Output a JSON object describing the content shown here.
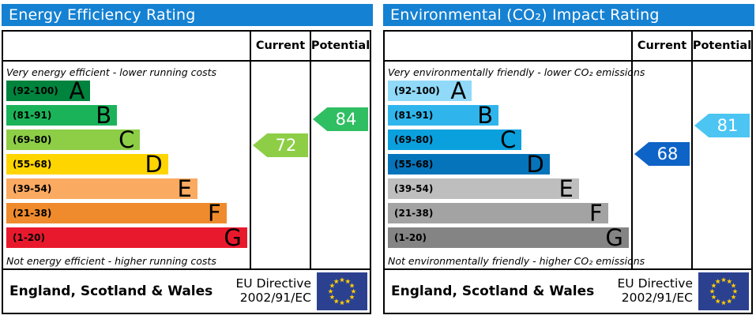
{
  "charts": [
    {
      "title": "Energy Efficiency Rating",
      "header_color": "#1581d2",
      "columns": {
        "current": "Current",
        "potential": "Potential"
      },
      "top_caption": "Very energy efficient - lower running costs",
      "bottom_caption": "Not energy efficient - higher running costs",
      "bands": [
        {
          "range": "(92-100)",
          "letter": "A",
          "color": "#00843d"
        },
        {
          "range": "(81-91)",
          "letter": "B",
          "color": "#1bb35a"
        },
        {
          "range": "(69-80)",
          "letter": "C",
          "color": "#8dce46"
        },
        {
          "range": "(55-68)",
          "letter": "D",
          "color": "#ffd500"
        },
        {
          "range": "(39-54)",
          "letter": "E",
          "color": "#fbaa61"
        },
        {
          "range": "(21-38)",
          "letter": "F",
          "color": "#ef8b2d"
        },
        {
          "range": "(1-20)",
          "letter": "G",
          "color": "#e9192d"
        }
      ],
      "current": {
        "value": 72,
        "color": "#8dce46"
      },
      "potential": {
        "value": 84,
        "color": "#2fbe62"
      },
      "footer": {
        "region": "England, Scotland & Wales",
        "directive_line1": "EU Directive",
        "directive_line2": "2002/91/EC"
      },
      "flag_colors": {
        "field": "#2b4190",
        "stars": "#ffcc00"
      }
    },
    {
      "title": "Environmental (CO₂) Impact Rating",
      "header_color": "#1581d2",
      "columns": {
        "current": "Current",
        "potential": "Potential"
      },
      "top_caption": "Very environmentally friendly - lower CO₂ emissions",
      "bottom_caption": "Not environmentally friendly - higher CO₂ emissions",
      "bands": [
        {
          "range": "(92-100)",
          "letter": "A",
          "color": "#90d9f8"
        },
        {
          "range": "(81-91)",
          "letter": "B",
          "color": "#2fb5ec"
        },
        {
          "range": "(69-80)",
          "letter": "C",
          "color": "#0aa0dd"
        },
        {
          "range": "(55-68)",
          "letter": "D",
          "color": "#0674ba"
        },
        {
          "range": "(39-54)",
          "letter": "E",
          "color": "#bebebe"
        },
        {
          "range": "(21-38)",
          "letter": "F",
          "color": "#a3a3a3"
        },
        {
          "range": "(1-20)",
          "letter": "G",
          "color": "#848484"
        }
      ],
      "current": {
        "value": 68,
        "color": "#0e63c6"
      },
      "potential": {
        "value": 81,
        "color": "#4cc5f3"
      },
      "footer": {
        "region": "England, Scotland & Wales",
        "directive_line1": "EU Directive",
        "directive_line2": "2002/91/EC"
      },
      "flag_colors": {
        "field": "#2b4190",
        "stars": "#ffcc00"
      }
    }
  ],
  "chart_data": [
    {
      "type": "bar",
      "title": "Energy Efficiency Rating",
      "categories": [
        "A",
        "B",
        "C",
        "D",
        "E",
        "F",
        "G"
      ],
      "band_ranges": [
        "92-100",
        "81-91",
        "69-80",
        "55-68",
        "39-54",
        "21-38",
        "1-20"
      ],
      "band_colors": [
        "#00843d",
        "#1bb35a",
        "#8dce46",
        "#ffd500",
        "#fbaa61",
        "#ef8b2d",
        "#e9192d"
      ],
      "scale": [
        1,
        100
      ],
      "current": 72,
      "current_band": "C",
      "potential": 84,
      "potential_band": "B",
      "top_note": "Very energy efficient - lower running costs",
      "bottom_note": "Not energy efficient - higher running costs",
      "footer": "England, Scotland & Wales — EU Directive 2002/91/EC"
    },
    {
      "type": "bar",
      "title": "Environmental (CO₂) Impact Rating",
      "categories": [
        "A",
        "B",
        "C",
        "D",
        "E",
        "F",
        "G"
      ],
      "band_ranges": [
        "92-100",
        "81-91",
        "69-80",
        "55-68",
        "39-54",
        "21-38",
        "1-20"
      ],
      "band_colors": [
        "#90d9f8",
        "#2fb5ec",
        "#0aa0dd",
        "#0674ba",
        "#bebebe",
        "#a3a3a3",
        "#848484"
      ],
      "scale": [
        1,
        100
      ],
      "current": 68,
      "current_band": "D",
      "potential": 81,
      "potential_band": "B",
      "top_note": "Very environmentally friendly - lower CO₂ emissions",
      "bottom_note": "Not environmentally friendly - higher CO₂ emissions",
      "footer": "England, Scotland & Wales — EU Directive 2002/91/EC"
    }
  ]
}
